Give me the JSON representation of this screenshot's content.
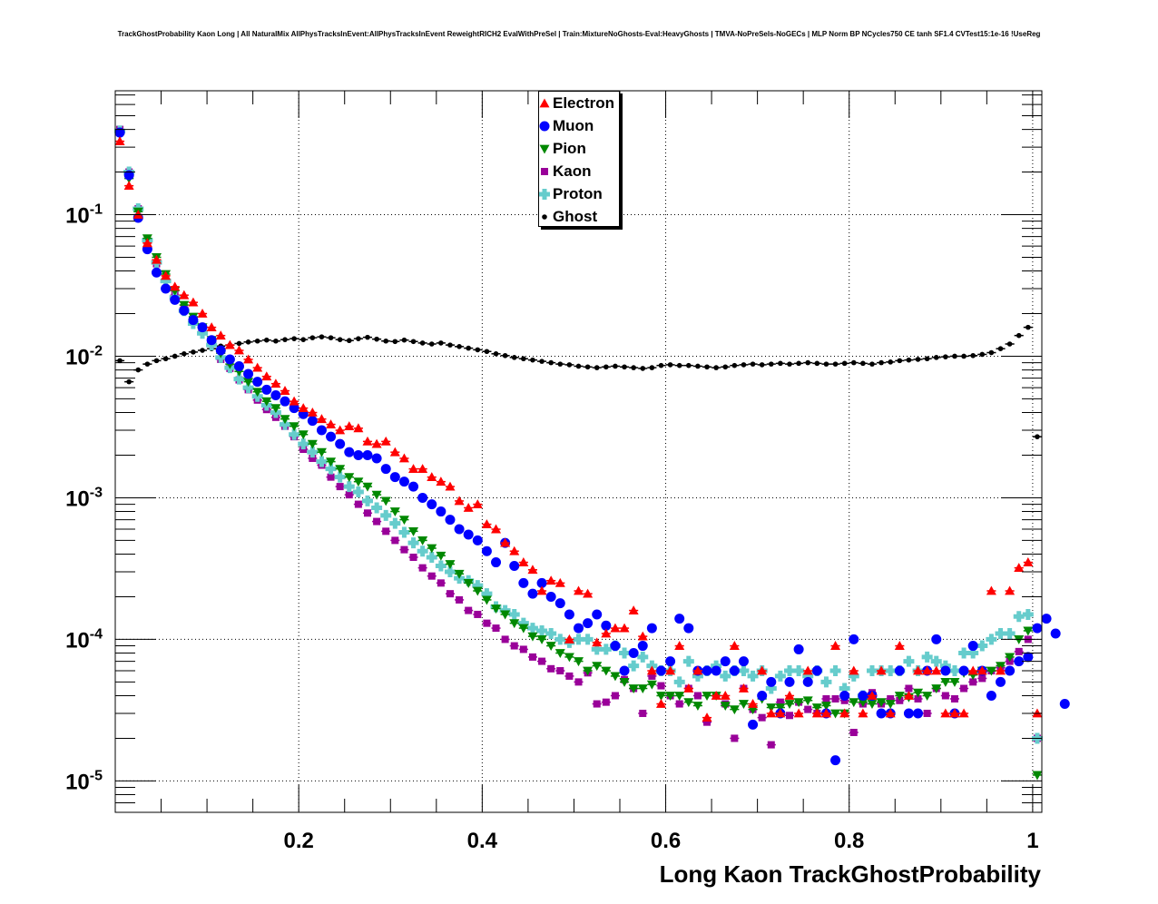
{
  "title": "TrackGhostProbability Kaon Long | All NaturalMix AllPhysTracksInEvent:AllPhysTracksInEvent ReweightRICH2 EvalWithPreSel | Train:MixtureNoGhosts-Eval:HeavyGhosts | TMVA-NoPreSels-NoGECs | MLP Norm BP NCycles750 CE tanh SF1.4 CVTest15:1e-16 !UseReg",
  "chart_data": {
    "type": "scatter",
    "title": "TrackGhostProbability Kaon Long | All NaturalMix AllPhysTracksInEvent:AllPhysTracksInEvent ReweightRICH2 EvalWithPreSel | Train:MixtureNoGhosts-Eval:HeavyGhosts | TMVA-NoPreSels-NoGECs | MLP Norm BP NCycles750 CE tanh SF1.4 CVTest15:1e-16 !UseReg",
    "xlabel": "Long Kaon TrackGhostProbability",
    "ylabel": "",
    "xlim": [
      0,
      1.01
    ],
    "ylim": [
      6e-06,
      0.75
    ],
    "yscale": "log",
    "grid": true,
    "legend_position": "top-center",
    "x_ticks": [
      "0.2",
      "0.4",
      "0.6",
      "0.8",
      "1"
    ],
    "x_tick_values": [
      0.2,
      0.4,
      0.6,
      0.8,
      1.0
    ],
    "y_ticks": [
      {
        "base": "10",
        "exp": "-1",
        "value": 0.1
      },
      {
        "base": "10",
        "exp": "-2",
        "value": 0.01
      },
      {
        "base": "10",
        "exp": "-3",
        "value": 0.001
      },
      {
        "base": "10",
        "exp": "-4",
        "value": 0.0001
      },
      {
        "base": "10",
        "exp": "-5",
        "value": 1e-05
      }
    ],
    "bin_width": 0.01,
    "x_first_bin_center": 0.005,
    "series": [
      {
        "name": "Electron",
        "color": "#ff0000",
        "marker": "triangle-up",
        "values": [
          0.33,
          0.16,
          0.1,
          0.063,
          0.048,
          0.037,
          0.031,
          0.027,
          0.024,
          0.02,
          0.016,
          0.014,
          0.012,
          0.011,
          0.0095,
          0.0083,
          0.0072,
          0.0064,
          0.0057,
          0.0048,
          0.0043,
          0.004,
          0.0036,
          0.0033,
          0.003,
          0.0032,
          0.0031,
          0.0025,
          0.0024,
          0.0025,
          0.0021,
          0.0019,
          0.0016,
          0.0016,
          0.0014,
          0.0013,
          0.0012,
          0.00095,
          0.00085,
          0.0009,
          0.00065,
          0.0006,
          0.00048,
          0.00042,
          0.00035,
          0.00031,
          0.00022,
          0.00026,
          0.00025,
          0.0001,
          0.00022,
          0.00021,
          9.5e-05,
          0.00011,
          0.00012,
          0.00012,
          0.00016,
          0.000105,
          6e-05,
          3.5e-05,
          6e-05,
          9e-05,
          4.5e-05,
          6e-05,
          2.8e-05,
          4e-05,
          4e-05,
          9e-05,
          4.5e-05,
          3.5e-05,
          6e-05,
          3e-05,
          3e-05,
          4e-05,
          3e-05,
          6e-05,
          3e-05,
          3e-05,
          9e-05,
          3e-05,
          6e-05,
          3e-05,
          4e-05,
          6e-05,
          3e-05,
          9e-05,
          4e-05,
          6e-05,
          6e-05,
          6e-05,
          3e-05,
          3e-05,
          3e-05,
          6e-05,
          6e-05,
          0.00022,
          6e-05,
          0.00022,
          0.00032,
          0.00035,
          3e-05
        ]
      },
      {
        "name": "Muon",
        "color": "#0000ff",
        "marker": "circle",
        "values": [
          0.38,
          0.19,
          0.095,
          0.057,
          0.039,
          0.03,
          0.025,
          0.021,
          0.018,
          0.016,
          0.013,
          0.011,
          0.0095,
          0.0085,
          0.0075,
          0.0066,
          0.0058,
          0.0053,
          0.0048,
          0.0043,
          0.0039,
          0.0035,
          0.003,
          0.0027,
          0.0024,
          0.0021,
          0.002,
          0.002,
          0.0019,
          0.0016,
          0.0014,
          0.0013,
          0.0012,
          0.001,
          0.0009,
          0.0008,
          0.0007,
          0.0006,
          0.00055,
          0.0005,
          0.00042,
          0.00035,
          0.00048,
          0.00033,
          0.00025,
          0.00021,
          0.00025,
          0.0002,
          0.00018,
          0.00015,
          0.00012,
          0.00013,
          0.00015,
          0.000125,
          9e-05,
          6e-05,
          8e-05,
          9e-05,
          0.00012,
          6e-05,
          7e-05,
          0.00014,
          0.00012,
          6e-05,
          6e-05,
          6e-05,
          7e-05,
          6e-05,
          7e-05,
          2.5e-05,
          4e-05,
          5e-05,
          3e-05,
          5e-05,
          8.5e-05,
          5e-05,
          6e-05,
          3e-05,
          1.4e-05,
          4e-05,
          0.0001,
          4e-05,
          4e-05,
          3e-05,
          3e-05,
          6e-05,
          3e-05,
          3e-05,
          6e-05,
          0.0001,
          6e-05,
          3e-05,
          6e-05,
          9e-05,
          6e-05,
          4e-05,
          5e-05,
          6e-05,
          7e-05,
          7.5e-05,
          0.00012,
          0.00014,
          0.00011,
          3.5e-05
        ]
      },
      {
        "name": "Pion",
        "color": "#008800",
        "marker": "triangle-down",
        "values": [
          0.37,
          0.18,
          0.105,
          0.068,
          0.05,
          0.038,
          0.029,
          0.023,
          0.019,
          0.016,
          0.013,
          0.0105,
          0.0088,
          0.0078,
          0.0066,
          0.0056,
          0.0048,
          0.0043,
          0.0036,
          0.0032,
          0.0028,
          0.0024,
          0.0021,
          0.0018,
          0.0016,
          0.0014,
          0.0013,
          0.0012,
          0.00105,
          0.00095,
          0.0008,
          0.0007,
          0.00058,
          0.0005,
          0.00044,
          0.00039,
          0.00034,
          0.00029,
          0.00025,
          0.00022,
          0.00019,
          0.000165,
          0.00015,
          0.00013,
          0.00012,
          0.000105,
          0.0001,
          9e-05,
          8e-05,
          7.5e-05,
          7e-05,
          6e-05,
          6.5e-05,
          6e-05,
          5.5e-05,
          5e-05,
          4.5e-05,
          4.5e-05,
          4.8e-05,
          4e-05,
          4e-05,
          4e-05,
          3.6e-05,
          3.4e-05,
          4e-05,
          4e-05,
          3.4e-05,
          3.2e-05,
          3.5e-05,
          3.2e-05,
          3.8e-05,
          3.3e-05,
          3.3e-05,
          3.5e-05,
          3.6e-05,
          3.7e-05,
          3.3e-05,
          3.4e-05,
          3e-05,
          3e-05,
          3.6e-05,
          3.6e-05,
          3.5e-05,
          3.6e-05,
          3.5e-05,
          4e-05,
          3.9e-05,
          4.2e-05,
          4e-05,
          4.5e-05,
          5e-05,
          5e-05,
          5.8e-05,
          5.6e-05,
          6e-05,
          6e-05,
          6.5e-05,
          7.5e-05,
          0.0001,
          0.000115,
          1.1e-05
        ]
      },
      {
        "name": "Kaon",
        "color": "#990099",
        "marker": "square",
        "values": [
          0.4,
          0.2,
          0.11,
          0.065,
          0.045,
          0.035,
          0.027,
          0.022,
          0.018,
          0.015,
          0.0125,
          0.0095,
          0.0082,
          0.0068,
          0.0058,
          0.0049,
          0.0042,
          0.0037,
          0.0032,
          0.0027,
          0.0022,
          0.0019,
          0.0017,
          0.0014,
          0.0012,
          0.00105,
          0.0009,
          0.00078,
          0.00068,
          0.00058,
          0.0005,
          0.00043,
          0.00038,
          0.00032,
          0.00028,
          0.00025,
          0.00021,
          0.00019,
          0.00016,
          0.00015,
          0.00013,
          0.00012,
          0.0001,
          9e-05,
          8.5e-05,
          7.5e-05,
          7e-05,
          6.2e-05,
          6e-05,
          5.5e-05,
          5e-05,
          5.8e-05,
          3.5e-05,
          3.6e-05,
          4e-05,
          5.2e-05,
          4.5e-05,
          3e-05,
          5.5e-05,
          4.7e-05,
          4e-05,
          3.5e-05,
          4.5e-05,
          4e-05,
          2.6e-05,
          4e-05,
          3.5e-05,
          2e-05,
          4.5e-05,
          3.2e-05,
          2.8e-05,
          1.8e-05,
          3.6e-05,
          2.9e-05,
          3.6e-05,
          3.2e-05,
          3e-05,
          3.8e-05,
          3.8e-05,
          3.7e-05,
          2.2e-05,
          3.5e-05,
          4.2e-05,
          3.5e-05,
          3.8e-05,
          3.7e-05,
          4.5e-05,
          3.8e-05,
          3e-05,
          4.5e-05,
          4e-05,
          3.8e-05,
          4.5e-05,
          5e-05,
          5.3e-05,
          6e-05,
          6.3e-05,
          7e-05,
          8.2e-05,
          0.0001,
          2e-05
        ]
      },
      {
        "name": "Proton",
        "color": "#66cccc",
        "marker": "cross",
        "values": [
          0.39,
          0.2,
          0.11,
          0.066,
          0.046,
          0.034,
          0.026,
          0.021,
          0.017,
          0.0145,
          0.012,
          0.0098,
          0.0083,
          0.0069,
          0.006,
          0.0052,
          0.0045,
          0.004,
          0.0033,
          0.0028,
          0.0024,
          0.0021,
          0.0018,
          0.0016,
          0.0014,
          0.0012,
          0.0011,
          0.00095,
          0.00085,
          0.00075,
          0.00066,
          0.00057,
          0.00048,
          0.00042,
          0.00038,
          0.00033,
          0.0003,
          0.00027,
          0.00026,
          0.00024,
          0.00021,
          0.00017,
          0.00016,
          0.00015,
          0.00013,
          0.00012,
          0.000115,
          0.00011,
          0.0001,
          9.5e-05,
          0.0001,
          0.0001,
          8.5e-05,
          8.5e-05,
          9e-05,
          8e-05,
          6.5e-05,
          7.5e-05,
          6.5e-05,
          6e-05,
          6e-05,
          5e-05,
          7e-05,
          5.5e-05,
          6e-05,
          6.5e-05,
          5.5e-05,
          6e-05,
          6e-05,
          5.5e-05,
          6e-05,
          4.5e-05,
          5.5e-05,
          6e-05,
          6e-05,
          5.5e-05,
          6e-05,
          5e-05,
          6e-05,
          4.5e-05,
          5.5e-05,
          4e-05,
          6e-05,
          6e-05,
          6e-05,
          6e-05,
          7e-05,
          6e-05,
          7.5e-05,
          7e-05,
          6.5e-05,
          6e-05,
          8e-05,
          8e-05,
          9e-05,
          0.0001,
          0.00011,
          0.00011,
          0.000145,
          0.00015,
          2e-05
        ]
      },
      {
        "name": "Ghost",
        "color": "#000000",
        "marker": "diamond",
        "values": [
          0.0093,
          0.0066,
          0.008,
          0.0088,
          0.0093,
          0.0096,
          0.01,
          0.0104,
          0.0107,
          0.011,
          0.0113,
          0.0118,
          0.012,
          0.0123,
          0.0126,
          0.0128,
          0.013,
          0.0128,
          0.0131,
          0.0133,
          0.0131,
          0.0135,
          0.0137,
          0.0135,
          0.0131,
          0.0129,
          0.0133,
          0.0136,
          0.0132,
          0.0128,
          0.0127,
          0.013,
          0.0127,
          0.0124,
          0.0122,
          0.0124,
          0.012,
          0.0117,
          0.0114,
          0.0111,
          0.0108,
          0.0104,
          0.0101,
          0.0098,
          0.0096,
          0.0094,
          0.0092,
          0.009,
          0.0088,
          0.0087,
          0.0085,
          0.0084,
          0.0083,
          0.0084,
          0.0085,
          0.0084,
          0.0083,
          0.0082,
          0.0083,
          0.0086,
          0.0087,
          0.0086,
          0.0086,
          0.0085,
          0.0084,
          0.0083,
          0.0084,
          0.0086,
          0.0087,
          0.0088,
          0.0087,
          0.0088,
          0.0089,
          0.0088,
          0.0089,
          0.009,
          0.0089,
          0.0088,
          0.0088,
          0.0089,
          0.009,
          0.0089,
          0.0088,
          0.009,
          0.0091,
          0.0093,
          0.0094,
          0.0095,
          0.0096,
          0.0098,
          0.0099,
          0.01,
          0.01,
          0.0101,
          0.0103,
          0.0106,
          0.0113,
          0.0122,
          0.014,
          0.016,
          0.0027
        ]
      }
    ]
  }
}
